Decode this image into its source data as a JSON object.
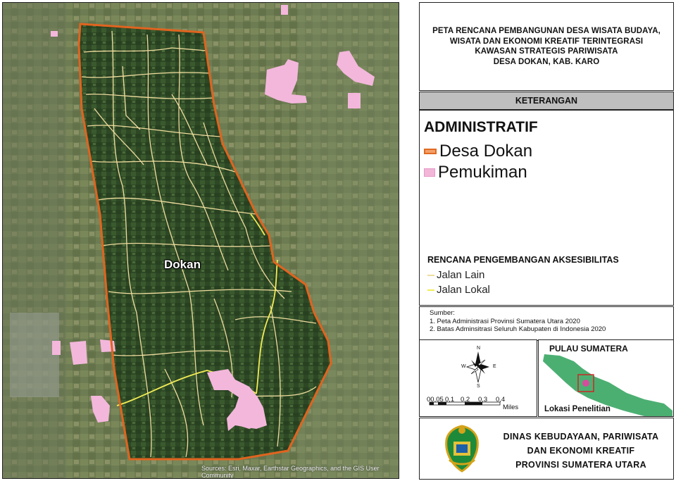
{
  "map": {
    "village_label": "Dokan",
    "attribution": "Sources: Esri, Maxar, Earthstar Geographics, and the GIS User Community",
    "colors": {
      "imagery_base": "#6b7a4f",
      "village_forest": "#2f4a26",
      "boundary": "#e0641f",
      "settlement": "#f3b7db",
      "jalan_lain": "#f2dfa0",
      "jalan_lokal": "#f4ee55"
    }
  },
  "title": {
    "lines": [
      "PETA RENCANA PEMBANGUNAN DESA WISATA BUDAYA,",
      "WISATA DAN EKONOMI KREATIF TERINTEGRASI",
      "KAWASAN STRATEGIS PARIWISATA",
      "DESA DOKAN, KAB. KARO"
    ]
  },
  "legend": {
    "header": "KETERANGAN",
    "admin_title": "ADMINISTRATIF",
    "admin_items": [
      {
        "label": "Desa Dokan",
        "symbol": "boundary-line"
      },
      {
        "label": "Pemukiman",
        "symbol": "settlement-polygon"
      }
    ],
    "access_title": "RENCANA PENGEMBANGAN AKSESIBILITAS",
    "access_items": [
      {
        "label": "Jalan Lain",
        "color": "#f2dfa0"
      },
      {
        "label": "Jalan Lokal",
        "color": "#f4ee55"
      }
    ]
  },
  "sources": {
    "title": "Sumber:",
    "items": [
      "1. Peta Administrasi Provinsi Sumatera Utara 2020",
      "2. Batas Adminsitrasi Seluruh Kabupaten di Indonesia 2020"
    ]
  },
  "compass": {
    "n": "N",
    "s": "S",
    "e": "E",
    "w": "W",
    "icon": "north-arrow-icon"
  },
  "scale_bar": {
    "labels": [
      "00,05",
      "0,1",
      "0,2",
      "0,3",
      "0,4"
    ],
    "unit": "Miles"
  },
  "inset": {
    "title": "PULAU SUMATERA",
    "caption": "Lokasi Penelitian",
    "island_color": "#4caf72"
  },
  "agency": {
    "lines": [
      "DINAS KEBUDAYAAN, PARIWISATA",
      "DAN EKONOMI KREATIF",
      "PROVINSI SUMATERA UTARA"
    ],
    "logo_icon": "provincial-emblem-icon"
  }
}
